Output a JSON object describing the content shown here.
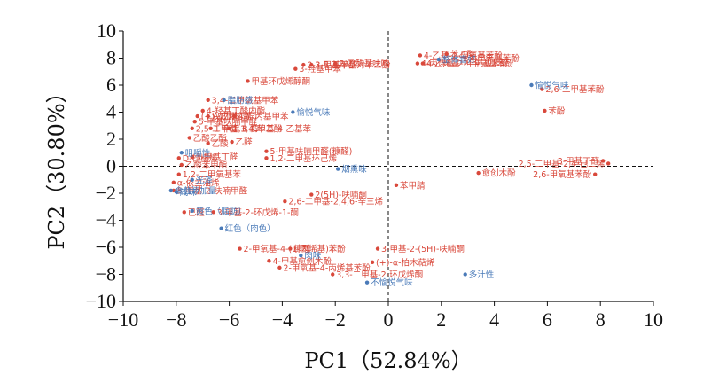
{
  "chart_data": {
    "type": "scatter",
    "xlabel": "PC1（52.84%）",
    "ylabel": "PC2（30.80%）",
    "xlim": [
      -10,
      10
    ],
    "ylim": [
      -10,
      10
    ],
    "xticks": [
      -10,
      -8,
      -6,
      -4,
      -2,
      0,
      2,
      4,
      6,
      8,
      10
    ],
    "yticks": [
      -10,
      -8,
      -6,
      -4,
      -2,
      0,
      2,
      4,
      6,
      8,
      10
    ],
    "reference_lines": "dashed x=0 and y=0",
    "colors": {
      "compound": "#d9483b",
      "attribute": "#4a7ab8"
    },
    "series": [
      {
        "kind": "compound",
        "points": [
          {
            "label": "4-乙基-2-甲氧基苯酚",
            "x": 1.2,
            "y": 8.2
          },
          {
            "label": "4-丙烯基-2-甲氧基苯酚",
            "x": 1.1,
            "y": 7.6
          },
          {
            "label": "苯乙醇",
            "x": 2.2,
            "y": 8.3
          },
          {
            "label": "对甲氧基苯酚",
            "x": 2.9,
            "y": 8.0
          },
          {
            "label": "4-乙烯基-2-甲氧基苯酚",
            "x": 1.3,
            "y": 7.6
          },
          {
            "label": "3-甲基苯酚",
            "x": -2.9,
            "y": 7.5
          },
          {
            "label": "2,3,5-三甲基对苯二酚",
            "x": -3.2,
            "y": 7.5
          },
          {
            "label": "3-羟基甲苯",
            "x": -3.5,
            "y": 7.2
          },
          {
            "label": "2-乙酰基呋喃",
            "x": -2.0,
            "y": 7.6
          },
          {
            "label": "甲基环戊烯醇酮",
            "x": -5.3,
            "y": 6.3
          },
          {
            "label": "3,4-二甲氧基甲苯",
            "x": -6.8,
            "y": 4.9
          },
          {
            "label": "4-羟基丁酸内酯",
            "x": -7.0,
            "y": 4.1
          },
          {
            "label": "(+)-花侧柏烯",
            "x": -7.2,
            "y": 3.7
          },
          {
            "label": "5-甲基呋喃甲醛",
            "x": -7.3,
            "y": 3.3
          },
          {
            "label": "2,5-二甲基-1,4-苯二酚",
            "x": -7.4,
            "y": 2.8
          },
          {
            "label": "双戊烯",
            "x": -6.8,
            "y": 3.7
          },
          {
            "label": "4-异丙基甲苯",
            "x": -5.8,
            "y": 3.7
          },
          {
            "label": "1-辛烯-3-醇",
            "x": -6.7,
            "y": 2.8
          },
          {
            "label": "1,3-二甲基-4-乙基苯",
            "x": -6.0,
            "y": 2.8
          },
          {
            "label": "乙酸乙酯",
            "x": -7.5,
            "y": 2.1
          },
          {
            "label": "乙醛",
            "x": -5.9,
            "y": 1.8
          },
          {
            "label": "乙酸",
            "x": -6.8,
            "y": 1.7
          },
          {
            "label": "5-甲基呋喃甲醛(糠醛)",
            "x": -4.6,
            "y": 1.1
          },
          {
            "label": "1,2-二甲基环己烯",
            "x": -4.6,
            "y": 0.6
          },
          {
            "label": "3-甲基丁醛",
            "x": -7.4,
            "y": 0.7
          },
          {
            "label": "D-柠檬烯",
            "x": -7.9,
            "y": 0.6
          },
          {
            "label": "乙酸苯甲酯",
            "x": -7.8,
            "y": 0.1
          },
          {
            "label": "1,2-二甲氧基苯",
            "x": -7.9,
            "y": -0.6
          },
          {
            "label": "α-依兰油烯",
            "x": -8.1,
            "y": -1.2
          },
          {
            "label": "5-甲基-2-呋喃甲醛",
            "x": -8.1,
            "y": -1.8
          },
          {
            "label": "已醛",
            "x": -7.7,
            "y": -3.4
          },
          {
            "label": "3-甲基-2-环戊烯-1-酮",
            "x": -6.6,
            "y": -3.4
          },
          {
            "label": "2(5H)-呋喃酮",
            "x": -2.9,
            "y": -2.1
          },
          {
            "label": "2,6-二甲基-2,4,6-辛三烯",
            "x": -3.9,
            "y": -2.6
          },
          {
            "label": "苯甲腈",
            "x": 0.3,
            "y": -1.4
          },
          {
            "label": "愈创木酚",
            "x": 3.4,
            "y": -0.5
          },
          {
            "label": "2-甲氧基-4-(1-丙烯基)苯酚",
            "x": -5.6,
            "y": -6.1
          },
          {
            "label": "4-甲基愈创木酚",
            "x": -4.5,
            "y": -7.0
          },
          {
            "label": "糠醇",
            "x": -3.7,
            "y": -6.1
          },
          {
            "label": "2-甲氧基-4-丙烯基苯酚",
            "x": -4.1,
            "y": -7.5
          },
          {
            "label": "3,3-二甲基-2-环戊烯酮",
            "x": -2.1,
            "y": -8.0
          },
          {
            "label": "3-甲基-2-(5H)-呋喃酮",
            "x": -0.4,
            "y": -6.1
          },
          {
            "label": "(+)-α-柏木萜烯",
            "x": -0.6,
            "y": -7.1
          },
          {
            "label": "2,6-二甲基苯酚",
            "x": 5.8,
            "y": 5.7
          },
          {
            "label": "苯酚",
            "x": 5.9,
            "y": 4.1
          },
          {
            "label": "3-甲基丁醛",
            "x": 8.1,
            "y": 0.4
          },
          {
            "label": "2,5-二甲基-2,4-己二烯",
            "x": 8.3,
            "y": 0.2
          },
          {
            "label": "2,6-甲氧基苯酚",
            "x": 7.8,
            "y": -0.6
          }
        ]
      },
      {
        "kind": "attribute",
        "points": [
          {
            "label": "整体喜好",
            "x": 1.9,
            "y": 7.9
          },
          {
            "label": "愉悦气味",
            "x": 5.4,
            "y": 6.0
          },
          {
            "label": "脂肪感",
            "x": -6.2,
            "y": 4.9
          },
          {
            "label": "愉悦气味",
            "x": -3.6,
            "y": 4.0
          },
          {
            "label": "咀嚼性",
            "x": -7.8,
            "y": 1.0
          },
          {
            "label": "光泽",
            "x": -7.4,
            "y": -1.0
          },
          {
            "label": "咸味",
            "x": -8.0,
            "y": -1.9
          },
          {
            "label": "食盐添加量",
            "x": -8.2,
            "y": -1.8
          },
          {
            "label": "黄色（脂肪）",
            "x": -7.4,
            "y": -3.3
          },
          {
            "label": "红色（肉色）",
            "x": -6.3,
            "y": -4.6
          },
          {
            "label": "烟熏味",
            "x": -1.9,
            "y": -0.2
          },
          {
            "label": "肉味",
            "x": -3.3,
            "y": -6.6
          },
          {
            "label": "不愉悦气味",
            "x": -0.8,
            "y": -8.6
          },
          {
            "label": "多汁性",
            "x": 2.9,
            "y": -8.0
          }
        ]
      }
    ]
  }
}
